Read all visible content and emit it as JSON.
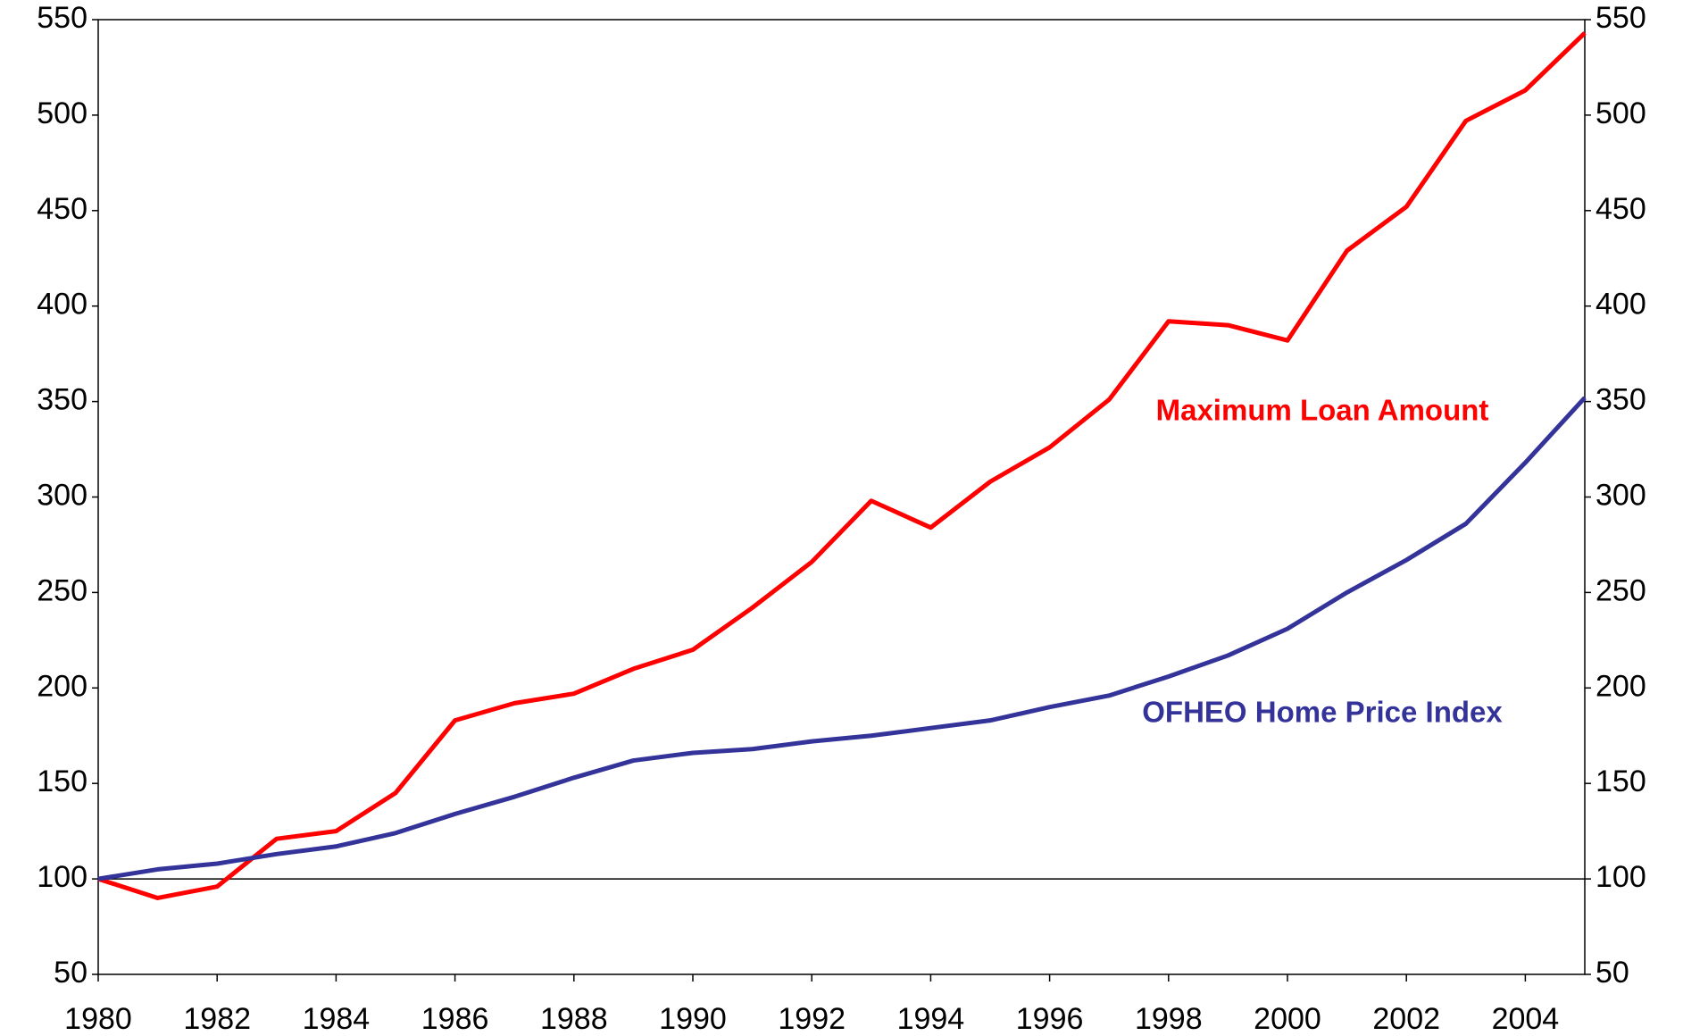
{
  "chart_data": {
    "type": "line",
    "x": [
      1980,
      1981,
      1982,
      1983,
      1984,
      1985,
      1986,
      1987,
      1988,
      1989,
      1990,
      1991,
      1992,
      1993,
      1994,
      1995,
      1996,
      1997,
      1998,
      1999,
      2000,
      2001,
      2002,
      2003,
      2004,
      2005
    ],
    "series": [
      {
        "name": "Maximum Loan Amount",
        "color": "#ff0000",
        "values": [
          100,
          90,
          96,
          121,
          125,
          145,
          183,
          192,
          197,
          210,
          220,
          242,
          266,
          298,
          284,
          308,
          326,
          351,
          392,
          390,
          382,
          429,
          452,
          497,
          513,
          543
        ]
      },
      {
        "name": "OFHEO Home Price Index",
        "color": "#333399",
        "values": [
          100,
          105,
          108,
          113,
          117,
          124,
          134,
          143,
          153,
          162,
          166,
          168,
          172,
          175,
          179,
          183,
          190,
          196,
          206,
          217,
          231,
          250,
          267,
          286,
          318,
          352
        ]
      }
    ],
    "xlim": [
      1980,
      2005
    ],
    "xticks": [
      1980,
      1982,
      1984,
      1986,
      1988,
      1990,
      1992,
      1994,
      1996,
      1998,
      2000,
      2002,
      2004
    ],
    "ylim": [
      50,
      550
    ],
    "yticks": [
      50,
      100,
      150,
      200,
      250,
      300,
      350,
      400,
      450,
      500,
      550
    ],
    "y2lim": [
      50,
      550
    ],
    "y2ticks": [
      50,
      100,
      150,
      200,
      250,
      300,
      350,
      400,
      450,
      500,
      550
    ],
    "reference_line": 100,
    "grid": false
  }
}
